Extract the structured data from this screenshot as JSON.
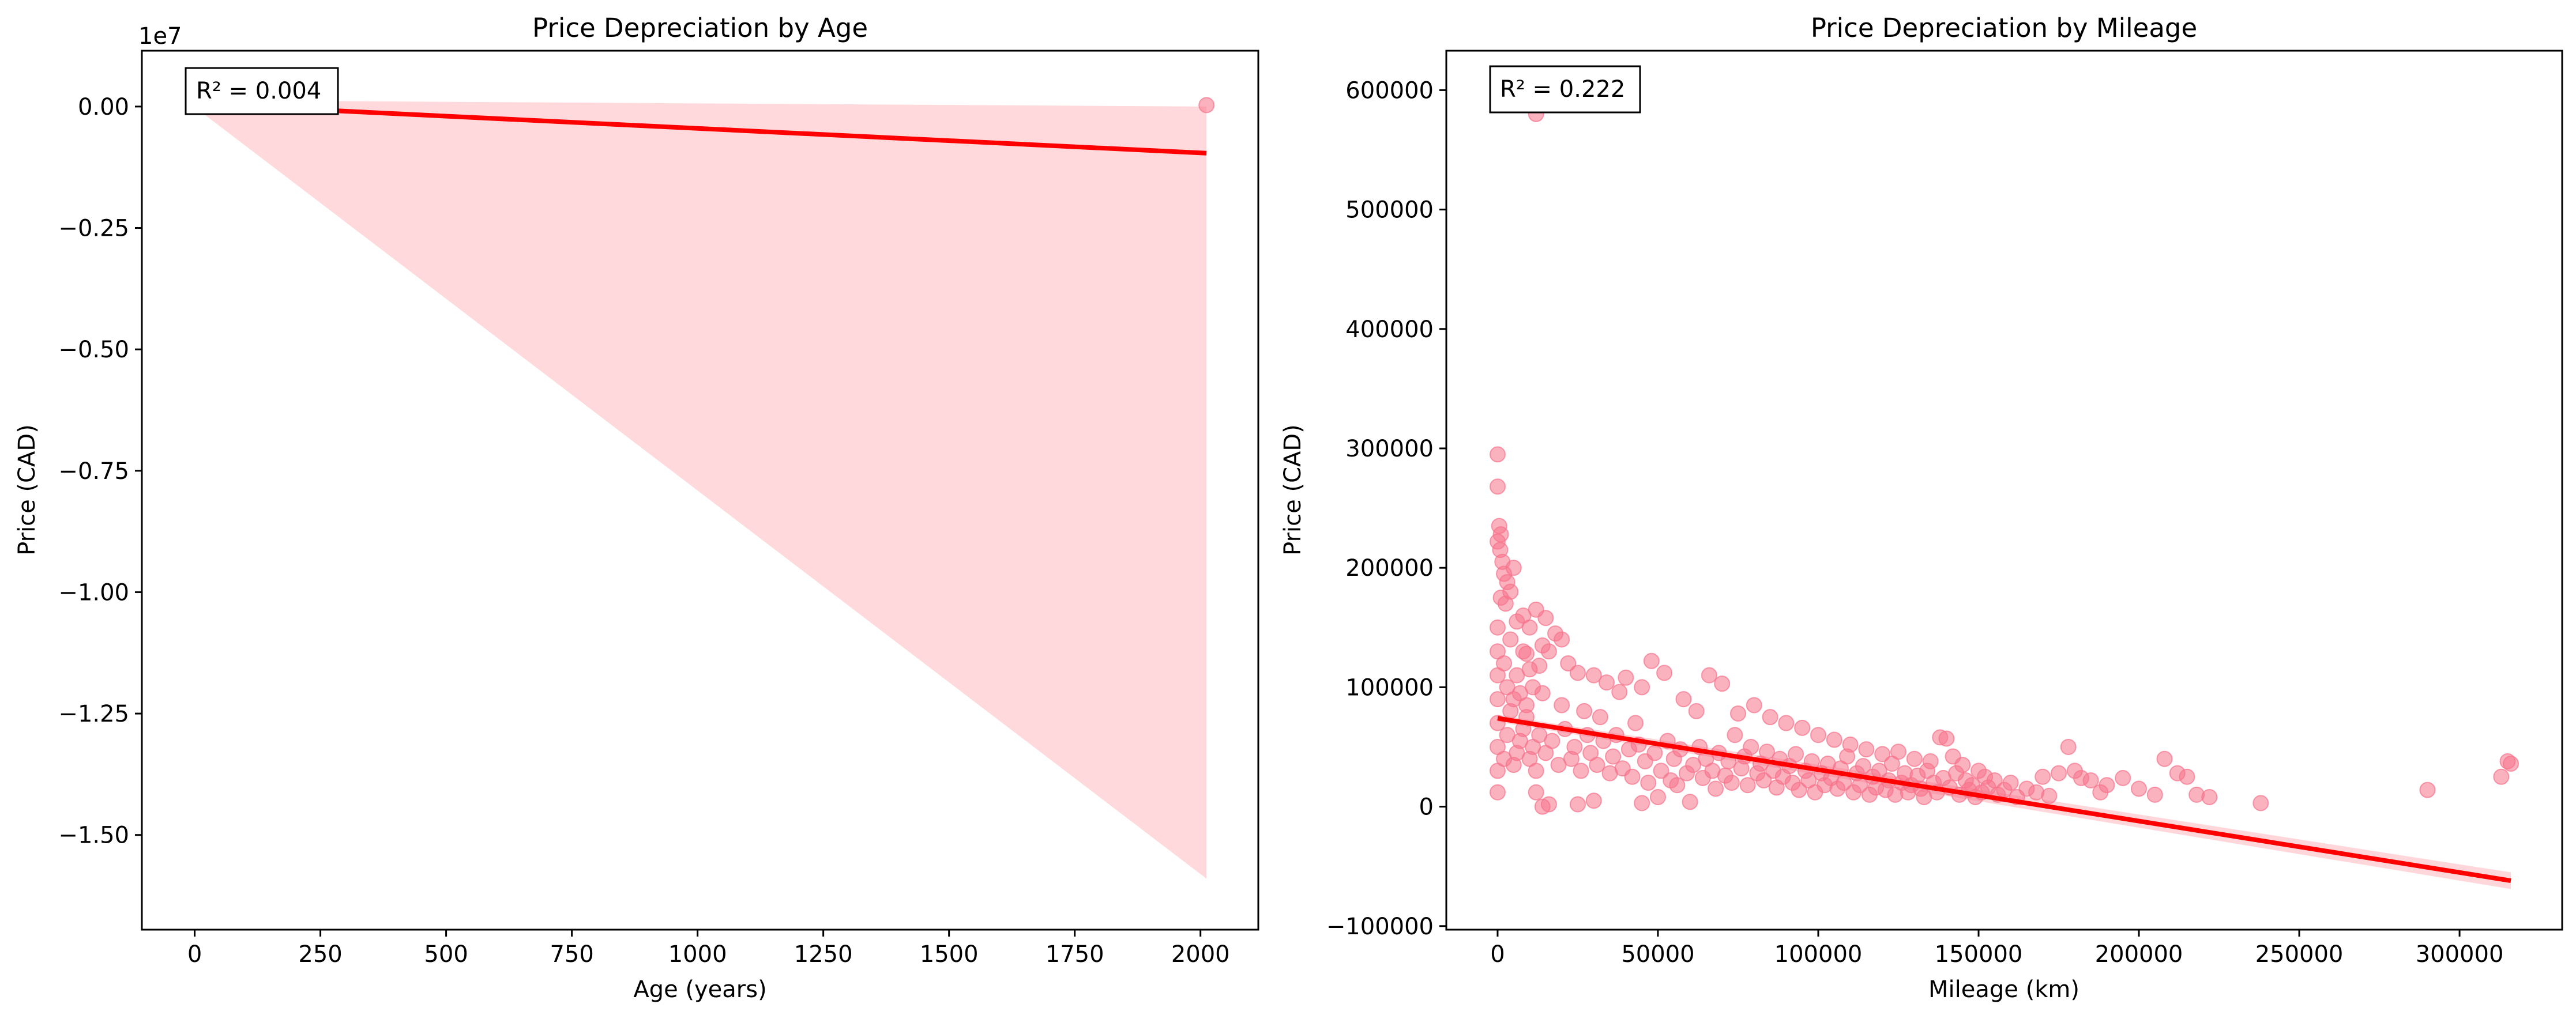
{
  "chart_data": [
    {
      "type": "scatter",
      "title": "Price Depreciation by Age",
      "xlabel": "Age (years)",
      "ylabel": "Price (CAD)",
      "offset_text": "1e7",
      "annotation": "R² = 0.004",
      "xlim": [
        -105,
        2115
      ],
      "ylim": [
        -16950000,
        1150000
      ],
      "xticks": [
        0,
        250,
        500,
        750,
        1000,
        1250,
        1500,
        1750,
        2000
      ],
      "xtick_labels": [
        "0",
        "250",
        "500",
        "750",
        "1000",
        "1250",
        "1500",
        "1750",
        "2000"
      ],
      "yticks": [
        0,
        -2500000,
        -5000000,
        -7500000,
        -10000000,
        -12500000,
        -15000000
      ],
      "ytick_labels": [
        "0.00",
        "−0.25",
        "−0.50",
        "−0.75",
        "−1.00",
        "−1.25",
        "−1.50"
      ],
      "points": [
        [
          0,
          60000
        ],
        [
          0,
          120000
        ],
        [
          1,
          40000
        ],
        [
          1,
          90000
        ],
        [
          2,
          30000
        ],
        [
          2,
          200000
        ],
        [
          3,
          50000
        ],
        [
          3,
          80000
        ],
        [
          4,
          70000
        ],
        [
          5,
          150000
        ],
        [
          5,
          30000
        ],
        [
          6,
          45000
        ],
        [
          7,
          25000
        ],
        [
          8,
          60000
        ],
        [
          9,
          20000
        ],
        [
          10,
          35000
        ],
        [
          11,
          15000
        ],
        [
          12,
          18000
        ],
        [
          14,
          22000
        ],
        [
          15,
          12000
        ],
        [
          18,
          10000
        ],
        [
          20,
          9000
        ],
        [
          1,
          600000
        ],
        [
          0,
          400000
        ],
        [
          90,
          30000
        ],
        [
          2012,
          30000
        ]
      ],
      "regression": {
        "x": [
          0,
          2012
        ],
        "y": [
          55000,
          -960000
        ]
      },
      "confidence_band": {
        "x": [
          0,
          2012
        ],
        "upper": [
          130000,
          0
        ],
        "lower": [
          -10000,
          -15900000
        ]
      },
      "colors": {
        "points": "#f7728a",
        "line": "#ff0000",
        "band": "#ffd9db"
      }
    },
    {
      "type": "scatter",
      "title": "Price Depreciation by Mileage",
      "xlabel": "Mileage (km)",
      "ylabel": "Price (CAD)",
      "annotation": "R² = 0.222",
      "xlim": [
        -16000,
        332000
      ],
      "ylim": [
        -103000,
        633000
      ],
      "xticks": [
        0,
        50000,
        100000,
        150000,
        200000,
        250000,
        300000
      ],
      "xtick_labels": [
        "0",
        "50000",
        "100000",
        "150000",
        "200000",
        "250000",
        "300000"
      ],
      "yticks": [
        -100000,
        0,
        100000,
        200000,
        300000,
        400000,
        500000,
        600000
      ],
      "ytick_labels": [
        "−100000",
        "0",
        "100000",
        "200000",
        "300000",
        "400000",
        "500000",
        "600000"
      ],
      "points": [
        [
          12000,
          580000
        ],
        [
          0,
          295000
        ],
        [
          0,
          268000
        ],
        [
          500,
          235000
        ],
        [
          1000,
          228000
        ],
        [
          0,
          222000
        ],
        [
          800,
          215000
        ],
        [
          1500,
          205000
        ],
        [
          5000,
          200000
        ],
        [
          2000,
          195000
        ],
        [
          3000,
          188000
        ],
        [
          4000,
          180000
        ],
        [
          1000,
          175000
        ],
        [
          2500,
          170000
        ],
        [
          12000,
          165000
        ],
        [
          8000,
          160000
        ],
        [
          15000,
          158000
        ],
        [
          6000,
          155000
        ],
        [
          10000,
          150000
        ],
        [
          18000,
          145000
        ],
        [
          20000,
          140000
        ],
        [
          14000,
          135000
        ],
        [
          16000,
          130000
        ],
        [
          9000,
          128000
        ],
        [
          22000,
          120000
        ],
        [
          13000,
          118000
        ],
        [
          25000,
          112000
        ],
        [
          30000,
          110000
        ],
        [
          48000,
          122000
        ],
        [
          52000,
          112000
        ],
        [
          40000,
          108000
        ],
        [
          34000,
          104000
        ],
        [
          45000,
          100000
        ],
        [
          38000,
          96000
        ],
        [
          66000,
          110000
        ],
        [
          70000,
          103000
        ],
        [
          80000,
          85000
        ],
        [
          58000,
          90000
        ],
        [
          62000,
          80000
        ],
        [
          75000,
          78000
        ],
        [
          85000,
          75000
        ],
        [
          90000,
          70000
        ],
        [
          95000,
          66000
        ],
        [
          100000,
          60000
        ],
        [
          105000,
          56000
        ],
        [
          110000,
          52000
        ],
        [
          115000,
          48000
        ],
        [
          120000,
          44000
        ],
        [
          125000,
          46000
        ],
        [
          130000,
          40000
        ],
        [
          135000,
          38000
        ],
        [
          138000,
          58000
        ],
        [
          140000,
          57000
        ],
        [
          142000,
          42000
        ],
        [
          145000,
          35000
        ],
        [
          150000,
          30000
        ],
        [
          152000,
          25000
        ],
        [
          155000,
          22000
        ],
        [
          160000,
          20000
        ],
        [
          165000,
          15000
        ],
        [
          170000,
          25000
        ],
        [
          175000,
          28000
        ],
        [
          178000,
          50000
        ],
        [
          180000,
          30000
        ],
        [
          182000,
          24000
        ],
        [
          185000,
          22000
        ],
        [
          190000,
          18000
        ],
        [
          195000,
          24000
        ],
        [
          200000,
          15000
        ],
        [
          205000,
          10000
        ],
        [
          208000,
          40000
        ],
        [
          212000,
          28000
        ],
        [
          215000,
          25000
        ],
        [
          218000,
          10000
        ],
        [
          222000,
          8000
        ],
        [
          238000,
          3000
        ],
        [
          290000,
          14000
        ],
        [
          313000,
          25000
        ],
        [
          315000,
          38000
        ],
        [
          316000,
          36000
        ],
        [
          14000,
          0
        ],
        [
          12000,
          12000
        ],
        [
          16000,
          2000
        ],
        [
          25000,
          2000
        ],
        [
          30000,
          5000
        ],
        [
          45000,
          3000
        ],
        [
          50000,
          8000
        ],
        [
          60000,
          4000
        ],
        [
          0,
          12000
        ],
        [
          0,
          30000
        ],
        [
          0,
          50000
        ],
        [
          0,
          70000
        ],
        [
          0,
          90000
        ],
        [
          0,
          110000
        ],
        [
          0,
          130000
        ],
        [
          0,
          150000
        ],
        [
          2000,
          40000
        ],
        [
          3000,
          60000
        ],
        [
          4000,
          80000
        ],
        [
          5000,
          35000
        ],
        [
          6000,
          45000
        ],
        [
          7000,
          55000
        ],
        [
          8000,
          65000
        ],
        [
          9000,
          75000
        ],
        [
          10000,
          40000
        ],
        [
          11000,
          50000
        ],
        [
          12000,
          30000
        ],
        [
          13000,
          60000
        ],
        [
          15000,
          45000
        ],
        [
          17000,
          55000
        ],
        [
          19000,
          35000
        ],
        [
          21000,
          65000
        ],
        [
          23000,
          40000
        ],
        [
          24000,
          50000
        ],
        [
          26000,
          30000
        ],
        [
          28000,
          60000
        ],
        [
          29000,
          45000
        ],
        [
          31000,
          35000
        ],
        [
          33000,
          55000
        ],
        [
          35000,
          28000
        ],
        [
          36000,
          42000
        ],
        [
          37000,
          60000
        ],
        [
          39000,
          32000
        ],
        [
          41000,
          48000
        ],
        [
          42000,
          25000
        ],
        [
          44000,
          52000
        ],
        [
          46000,
          38000
        ],
        [
          47000,
          20000
        ],
        [
          49000,
          45000
        ],
        [
          51000,
          30000
        ],
        [
          53000,
          55000
        ],
        [
          54000,
          22000
        ],
        [
          55000,
          40000
        ],
        [
          56000,
          18000
        ],
        [
          57000,
          48000
        ],
        [
          59000,
          28000
        ],
        [
          61000,
          35000
        ],
        [
          63000,
          50000
        ],
        [
          64000,
          24000
        ],
        [
          65000,
          40000
        ],
        [
          67000,
          30000
        ],
        [
          68000,
          15000
        ],
        [
          69000,
          45000
        ],
        [
          71000,
          26000
        ],
        [
          72000,
          38000
        ],
        [
          73000,
          20000
        ],
        [
          74000,
          60000
        ],
        [
          76000,
          32000
        ],
        [
          77000,
          42000
        ],
        [
          78000,
          18000
        ],
        [
          79000,
          50000
        ],
        [
          81000,
          28000
        ],
        [
          82000,
          36000
        ],
        [
          83000,
          22000
        ],
        [
          84000,
          46000
        ],
        [
          86000,
          30000
        ],
        [
          87000,
          16000
        ],
        [
          88000,
          40000
        ],
        [
          89000,
          25000
        ],
        [
          91000,
          34000
        ],
        [
          92000,
          20000
        ],
        [
          93000,
          44000
        ],
        [
          94000,
          14000
        ],
        [
          96000,
          30000
        ],
        [
          97000,
          22000
        ],
        [
          98000,
          38000
        ],
        [
          99000,
          12000
        ],
        [
          101000,
          28000
        ],
        [
          102000,
          18000
        ],
        [
          103000,
          36000
        ],
        [
          104000,
          24000
        ],
        [
          106000,
          15000
        ],
        [
          107000,
          32000
        ],
        [
          108000,
          20000
        ],
        [
          109000,
          42000
        ],
        [
          111000,
          12000
        ],
        [
          112000,
          28000
        ],
        [
          113000,
          18000
        ],
        [
          114000,
          34000
        ],
        [
          116000,
          10000
        ],
        [
          117000,
          25000
        ],
        [
          118000,
          16000
        ],
        [
          119000,
          30000
        ],
        [
          121000,
          14000
        ],
        [
          122000,
          22000
        ],
        [
          123000,
          36000
        ],
        [
          124000,
          10000
        ],
        [
          126000,
          20000
        ],
        [
          127000,
          28000
        ],
        [
          128000,
          12000
        ],
        [
          129000,
          18000
        ],
        [
          131000,
          26000
        ],
        [
          132000,
          15000
        ],
        [
          133000,
          8000
        ],
        [
          134000,
          30000
        ],
        [
          136000,
          20000
        ],
        [
          137000,
          12000
        ],
        [
          139000,
          24000
        ],
        [
          141000,
          16000
        ],
        [
          143000,
          28000
        ],
        [
          144000,
          10000
        ],
        [
          146000,
          22000
        ],
        [
          147000,
          14000
        ],
        [
          148000,
          18000
        ],
        [
          149000,
          8000
        ],
        [
          151000,
          12000
        ],
        [
          153000,
          16000
        ],
        [
          156000,
          10000
        ],
        [
          158000,
          14000
        ],
        [
          162000,
          8000
        ],
        [
          168000,
          12000
        ],
        [
          172000,
          9000
        ],
        [
          188000,
          12000
        ],
        [
          3000,
          100000
        ],
        [
          5000,
          90000
        ],
        [
          7000,
          95000
        ],
        [
          9000,
          85000
        ],
        [
          11000,
          100000
        ],
        [
          2000,
          120000
        ],
        [
          4000,
          140000
        ],
        [
          6000,
          110000
        ],
        [
          8000,
          130000
        ],
        [
          10000,
          115000
        ],
        [
          14000,
          95000
        ],
        [
          20000,
          85000
        ],
        [
          27000,
          80000
        ],
        [
          32000,
          75000
        ],
        [
          43000,
          70000
        ]
      ],
      "regression": {
        "x": [
          0,
          316000
        ],
        "y": [
          74000,
          -62000
        ]
      },
      "confidence_band": {
        "x": [
          0,
          316000
        ],
        "upper": [
          77000,
          -55000
        ],
        "lower": [
          71000,
          -69000
        ]
      },
      "colors": {
        "points": "#f7728a",
        "line": "#ff0000",
        "band": "#ffd6da"
      }
    }
  ]
}
